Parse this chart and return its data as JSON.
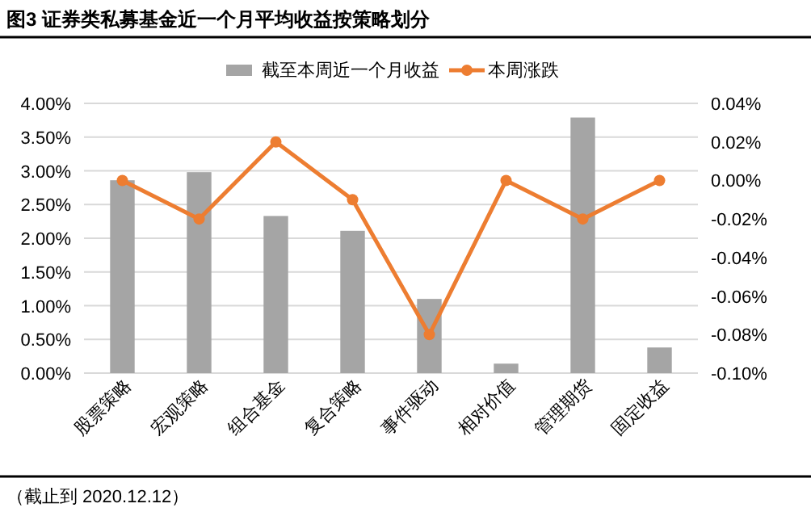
{
  "chart_data": {
    "type": "bar",
    "title": "图3 证券类私募基金近一个月平均收益按策略划分",
    "categories": [
      "股票策略",
      "宏观策略",
      "组合基金",
      "复合策略",
      "事件驱动",
      "相对价值",
      "管理期货",
      "固定收益"
    ],
    "series": [
      {
        "name": "截至本周近一个月收益",
        "color": "#a5a5a5",
        "values": [
          2.86,
          2.98,
          2.33,
          2.11,
          1.1,
          0.14,
          3.79,
          0.38
        ]
      },
      {
        "name": "本周涨跌",
        "type": "line",
        "axis": "y2",
        "color": "#ed7d31",
        "marker": "circle",
        "values": [
          0,
          -0.02,
          0.02,
          -0.01,
          -0.08,
          0,
          -0.02,
          0
        ]
      }
    ],
    "ylim": [
      0,
      4
    ],
    "yticks": [
      {
        "value": 0,
        "label": "0.00%"
      },
      {
        "value": 0.5,
        "label": "0.50%"
      },
      {
        "value": 1,
        "label": "1.00%"
      },
      {
        "value": 1.5,
        "label": "1.50%"
      },
      {
        "value": 2,
        "label": "2.00%"
      },
      {
        "value": 2.5,
        "label": "2.50%"
      },
      {
        "value": 3,
        "label": "3.00%"
      },
      {
        "value": 3.5,
        "label": "3.50%"
      },
      {
        "value": 4,
        "label": "4.00%"
      }
    ],
    "y2lim": [
      -0.1,
      0.04
    ],
    "y2ticks": [
      {
        "value": -0.1,
        "label": "-0.10%"
      },
      {
        "value": -0.08,
        "label": "-0.08%"
      },
      {
        "value": -0.06,
        "label": "-0.06%"
      },
      {
        "value": -0.04,
        "label": "-0.04%"
      },
      {
        "value": -0.02,
        "label": "-0.02%"
      },
      {
        "value": 0,
        "label": "0.00%"
      },
      {
        "value": 0.02,
        "label": "0.02%"
      },
      {
        "value": 0.04,
        "label": "0.04%"
      }
    ],
    "grid": "y",
    "legend": "top",
    "annotations": [
      "（截止到 2020.12.12）"
    ]
  }
}
